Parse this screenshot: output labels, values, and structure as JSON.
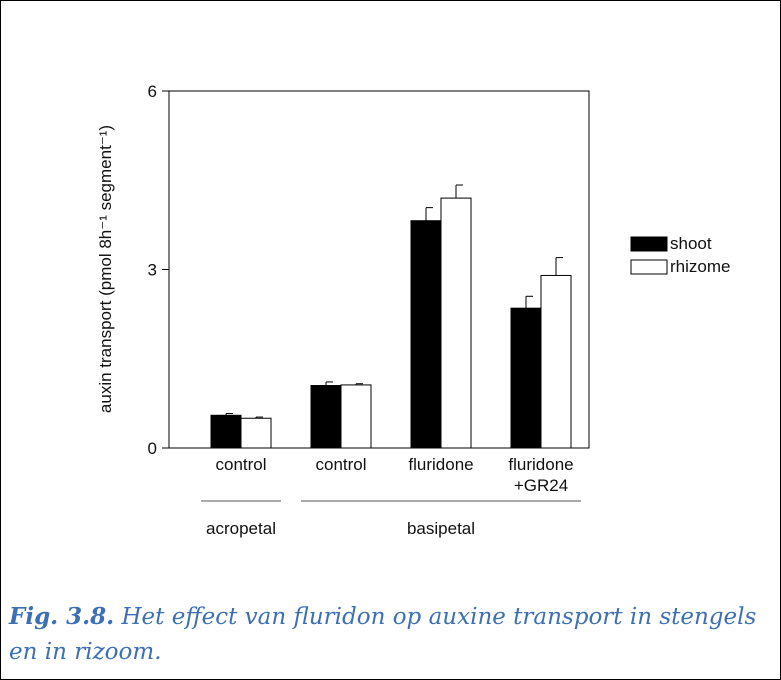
{
  "chart_data": {
    "type": "bar",
    "y_label": "auxin transport (pmol 8h⁻¹ segment⁻¹)",
    "categories": [
      "control",
      "control",
      "fluridone",
      "fluridone\n+GR24"
    ],
    "groups": [
      {
        "label": "acropetal",
        "span": [
          0,
          0
        ]
      },
      {
        "label": "basipetal",
        "span": [
          1,
          3
        ]
      }
    ],
    "series": [
      {
        "name": "shoot",
        "color": "#000000",
        "values": [
          0.55,
          1.05,
          3.82,
          2.35
        ],
        "errors": [
          0.03,
          0.06,
          0.22,
          0.2
        ]
      },
      {
        "name": "rhizome",
        "color": "#ffffff",
        "values": [
          0.5,
          1.06,
          4.2,
          2.9
        ],
        "errors": [
          0.02,
          0.02,
          0.22,
          0.3
        ]
      }
    ],
    "ylim": [
      0,
      6
    ],
    "yticks": [
      0,
      3,
      6
    ],
    "legend": "right"
  },
  "caption": {
    "label": "Fig. 3.8.",
    "text": "Het effect van fluridon op auxine transport in stengels en in rizoom."
  }
}
